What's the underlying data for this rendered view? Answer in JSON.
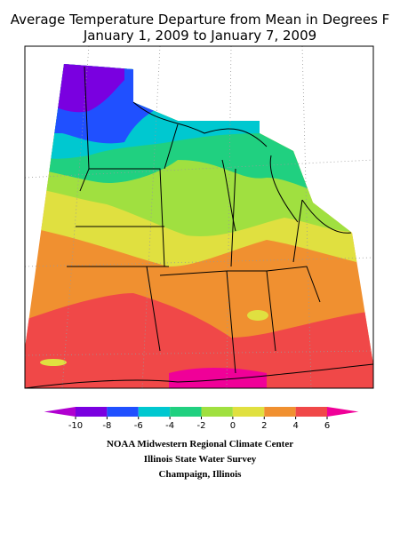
{
  "header": {
    "title": "Average Temperature Departure from Mean in Degrees F",
    "subtitle": "January 1, 2009 to January 7, 2009"
  },
  "legend": {
    "ticks": [
      -10,
      -8,
      -6,
      -4,
      -2,
      0,
      2,
      4,
      6
    ],
    "colors": [
      "#7a00e0",
      "#2050ff",
      "#00c8d0",
      "#20d080",
      "#a0e040",
      "#e0e040",
      "#f09030",
      "#f04848"
    ],
    "low_color": "#b000d0",
    "high_color": "#f00098"
  },
  "credits": [
    "NOAA Midwestern Regional Climate Center",
    "Illinois State Water Survey",
    "Champaign, Illinois"
  ]
}
